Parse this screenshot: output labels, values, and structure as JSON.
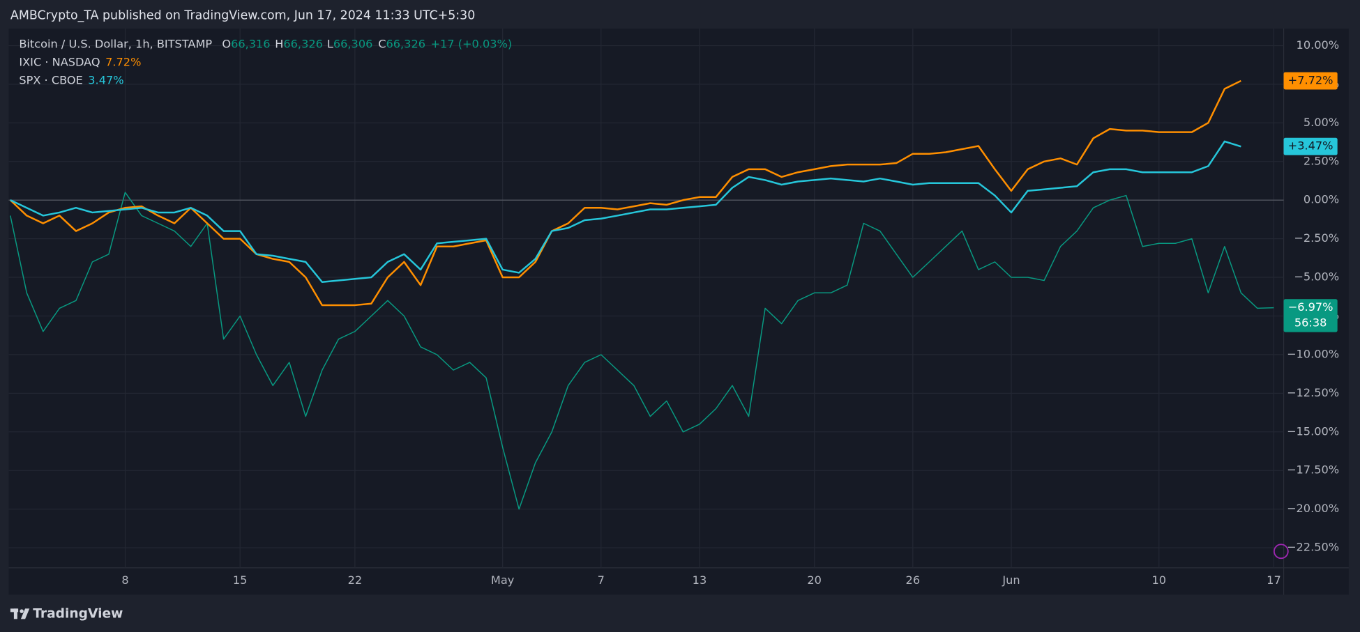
{
  "header": {
    "title": "AMBCrypto_TA published on TradingView.com, Jun 17, 2024 11:33 UTC+5:30"
  },
  "footer": {
    "brand": "TradingView"
  },
  "chart_data": {
    "type": "line",
    "categories": [
      null,
      null,
      null,
      null,
      null,
      null,
      null,
      "8",
      null,
      null,
      null,
      null,
      null,
      null,
      "15",
      null,
      null,
      null,
      null,
      null,
      null,
      "22",
      null,
      null,
      null,
      null,
      null,
      null,
      null,
      null,
      "May",
      null,
      null,
      null,
      null,
      null,
      "7",
      null,
      null,
      null,
      null,
      null,
      "13",
      null,
      null,
      null,
      null,
      null,
      null,
      "20",
      null,
      null,
      null,
      null,
      null,
      "26",
      null,
      null,
      null,
      null,
      null,
      "Jun",
      null,
      null,
      null,
      null,
      null,
      null,
      null,
      null,
      "10",
      null,
      null,
      null,
      null,
      null,
      null,
      "17"
    ],
    "ylim": [
      -23.8,
      11.1
    ],
    "yticks": [
      {
        "value": 10,
        "label": "10.00%"
      },
      {
        "value": 7.5,
        "label": "7.50%"
      },
      {
        "value": 5,
        "label": "5.00%"
      },
      {
        "value": 2.5,
        "label": "2.50%"
      },
      {
        "value": 0,
        "label": "0.00%"
      },
      {
        "value": -2.5,
        "label": "−2.50%"
      },
      {
        "value": -5,
        "label": "−5.00%"
      },
      {
        "value": -7.5,
        "label": "−7.50%"
      },
      {
        "value": -10,
        "label": "−10.00%"
      },
      {
        "value": -12.5,
        "label": "−12.50%"
      },
      {
        "value": -15,
        "label": "−15.00%"
      },
      {
        "value": -17.5,
        "label": "−17.50%"
      },
      {
        "value": -20,
        "label": "−20.00%"
      },
      {
        "value": -22.5,
        "label": "−22.50%"
      }
    ],
    "grid": true,
    "series": [
      {
        "name": "Bitcoin / U.S. Dollar, 1h, BITSTAMP",
        "color": "#089981",
        "ohlc": [
          {
            "label": "O",
            "value": "66,316"
          },
          {
            "label": "H",
            "value": "66,326"
          },
          {
            "label": "L",
            "value": "66,306"
          },
          {
            "label": "C",
            "value": "66,326"
          }
        ],
        "change": "+17 (+0.03%)",
        "badge": "−6.97%",
        "countdown": "56:38",
        "values": [
          -1,
          -6,
          -8.5,
          -7,
          -6.5,
          -4,
          -3.5,
          0.5,
          -1,
          -1.5,
          -2,
          -3,
          -1.5,
          -9,
          -7.5,
          -10,
          -12,
          -10.5,
          -14,
          -11,
          -9,
          -8.5,
          -7.5,
          -6.5,
          -7.5,
          -9.5,
          -10,
          -11,
          -10.5,
          -11.5,
          -16,
          -20,
          -17,
          -15,
          -12,
          -10.5,
          -10,
          -11,
          -12,
          -14,
          -13,
          -15,
          -14.5,
          -13.5,
          -12,
          -14,
          -7,
          -8,
          -6.5,
          -6,
          -6,
          -5.5,
          -1.5,
          -2,
          -3.5,
          -5,
          -4,
          -3,
          -2,
          -4.5,
          -4,
          -5,
          -5,
          -5.2,
          -3,
          -2,
          -0.5,
          0,
          0.3,
          -3,
          -2.8,
          -2.8,
          -2.5,
          -6,
          -3,
          -6,
          -7,
          -6.97
        ]
      },
      {
        "name": "IXIC · NASDAQ",
        "color": "#ff8f00",
        "legend_value": "7.72%",
        "badge": "+7.72%",
        "values": [
          0,
          -1,
          -1.5,
          -1,
          -2,
          -1.5,
          -0.8,
          -0.5,
          -0.4,
          -1,
          -1.5,
          -0.5,
          -1.5,
          -2.5,
          -2.5,
          -3.5,
          -3.8,
          -4,
          -5,
          -6.8,
          -6.8,
          -6.8,
          -6.7,
          -5,
          -4,
          -5.5,
          -3,
          -3,
          -2.8,
          -2.6,
          -5,
          -5,
          -4,
          -2,
          -1.5,
          -0.5,
          -0.5,
          -0.6,
          -0.4,
          -0.2,
          -0.3,
          0,
          0.2,
          0.2,
          1.5,
          2,
          2,
          1.5,
          1.8,
          2,
          2.2,
          2.3,
          2.3,
          2.3,
          2.4,
          3,
          3,
          3.1,
          3.3,
          3.5,
          2,
          0.6,
          2,
          2.5,
          2.7,
          2.3,
          4,
          4.6,
          4.5,
          4.5,
          4.4,
          4.4,
          4.4,
          5,
          7.2,
          7.72,
          null,
          null
        ]
      },
      {
        "name": "SPX · CBOE",
        "color": "#26c6da",
        "legend_value": "3.47%",
        "badge": "+3.47%",
        "values": [
          0,
          -0.5,
          -1,
          -0.8,
          -0.5,
          -0.8,
          -0.7,
          -0.6,
          -0.5,
          -0.8,
          -0.8,
          -0.5,
          -1,
          -2,
          -2,
          -3.5,
          -3.6,
          -3.8,
          -4,
          -5.3,
          -5.2,
          -5.1,
          -5,
          -4,
          -3.5,
          -4.5,
          -2.8,
          -2.7,
          -2.6,
          -2.5,
          -4.5,
          -4.7,
          -3.8,
          -2,
          -1.8,
          -1.3,
          -1.2,
          -1,
          -0.8,
          -0.6,
          -0.6,
          -0.5,
          -0.4,
          -0.3,
          0.8,
          1.5,
          1.3,
          1,
          1.2,
          1.3,
          1.4,
          1.3,
          1.2,
          1.4,
          1.2,
          1,
          1.1,
          1.1,
          1.1,
          1.1,
          0.3,
          -0.8,
          0.6,
          0.7,
          0.8,
          0.9,
          1.8,
          2,
          2,
          1.8,
          1.8,
          1.8,
          1.8,
          2.2,
          3.8,
          3.47,
          null,
          null
        ]
      }
    ]
  }
}
